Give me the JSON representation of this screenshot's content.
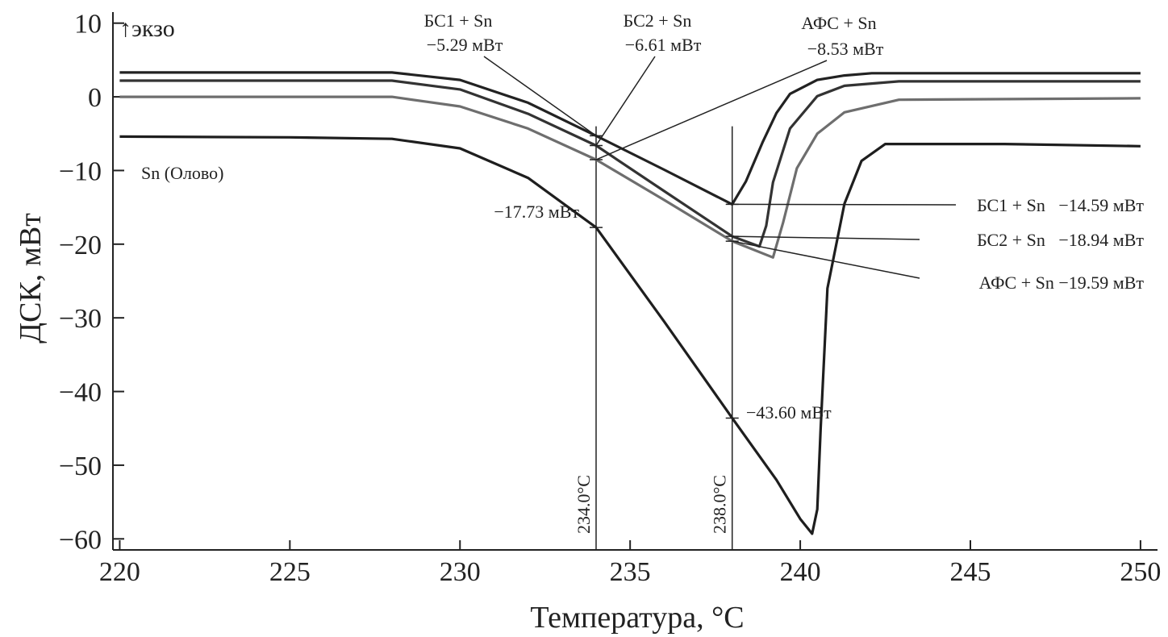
{
  "chart_data": {
    "type": "line",
    "title": "",
    "xlabel": "Температура, °C",
    "ylabel": "ДСК, мВт",
    "exo_label": "↑экзо",
    "xlim": [
      219.8,
      250.5
    ],
    "ylim": [
      -61.5,
      11.5
    ],
    "xticks": [
      220,
      225,
      230,
      235,
      240,
      245,
      250
    ],
    "yticks": [
      10,
      0,
      -10,
      -20,
      -30,
      -40,
      -50,
      -60
    ],
    "xtick_labels": [
      "220",
      "225",
      "230",
      "235",
      "240",
      "245",
      "250"
    ],
    "ytick_labels": [
      "10",
      "0",
      "−10",
      "−20",
      "−30",
      "−40",
      "−50",
      "−60"
    ],
    "grid": false,
    "series": [
      {
        "name": "БС1 + Sn",
        "color": "#222222",
        "points": [
          [
            220,
            3.3
          ],
          [
            228,
            3.3
          ],
          [
            230,
            2.3
          ],
          [
            232,
            -0.8
          ],
          [
            234,
            -5.29
          ],
          [
            236,
            -9.9
          ],
          [
            238,
            -14.59
          ],
          [
            238.4,
            -11.5
          ],
          [
            238.9,
            -6.1
          ],
          [
            239.3,
            -2.2
          ],
          [
            239.7,
            0.4
          ],
          [
            240.5,
            2.3
          ],
          [
            241.3,
            2.9
          ],
          [
            242.1,
            3.2
          ],
          [
            250,
            3.2
          ]
        ]
      },
      {
        "name": "БС2 + Sn",
        "color": "#333333",
        "points": [
          [
            220,
            2.2
          ],
          [
            228,
            2.2
          ],
          [
            230,
            1.0
          ],
          [
            232,
            -2.3
          ],
          [
            234,
            -6.61
          ],
          [
            236,
            -12.8
          ],
          [
            238,
            -18.94
          ],
          [
            238.8,
            -20.3
          ],
          [
            239.0,
            -17.5
          ],
          [
            239.2,
            -11.6
          ],
          [
            239.7,
            -4.3
          ],
          [
            240.5,
            0.1
          ],
          [
            241.3,
            1.5
          ],
          [
            242.9,
            2.1
          ],
          [
            250,
            2.1
          ]
        ]
      },
      {
        "name": "АФС + Sn",
        "color": "#6e6e6e",
        "points": [
          [
            220,
            0
          ],
          [
            228,
            0
          ],
          [
            230,
            -1.3
          ],
          [
            232,
            -4.3
          ],
          [
            234,
            -8.53
          ],
          [
            236,
            -14.0
          ],
          [
            238,
            -19.59
          ],
          [
            239.2,
            -21.8
          ],
          [
            239.5,
            -17
          ],
          [
            239.9,
            -9.7
          ],
          [
            240.5,
            -5
          ],
          [
            241.3,
            -2.1
          ],
          [
            242.9,
            -0.4
          ],
          [
            250,
            -0.2
          ]
        ]
      },
      {
        "name": "Sn (Олово)",
        "color": "#1e1e1e",
        "points": [
          [
            220,
            -5.4
          ],
          [
            225,
            -5.5
          ],
          [
            228,
            -5.7
          ],
          [
            230,
            -7
          ],
          [
            232,
            -11
          ],
          [
            234,
            -17.73
          ],
          [
            236,
            -30.5
          ],
          [
            238,
            -43.6
          ],
          [
            239.3,
            -52
          ],
          [
            240.0,
            -57.3
          ],
          [
            240.35,
            -59.3
          ],
          [
            240.5,
            -56
          ],
          [
            240.6,
            -45
          ],
          [
            240.8,
            -26
          ],
          [
            241.3,
            -14.5
          ],
          [
            241.8,
            -8.7
          ],
          [
            242.5,
            -6.4
          ],
          [
            246,
            -6.4
          ],
          [
            250,
            -6.7
          ]
        ]
      }
    ],
    "vlines": [
      {
        "x": 234,
        "label": "234.0°C"
      },
      {
        "x": 238,
        "label": "238.0°C"
      }
    ],
    "annotations": {
      "bc1_234": {
        "series": "БС1 + Sn",
        "value": "−5.29 мВт"
      },
      "bc2_234": {
        "series": "БС2 + Sn",
        "value": "−6.61 мВт"
      },
      "afs_234": {
        "series": "АФС + Sn",
        "value": "−8.53 мВт"
      },
      "sn_234": {
        "value": "−17.73 мВт"
      },
      "bc1_238": {
        "text": "БС1 + Sn   −14.59 мВт"
      },
      "bc2_238": {
        "text": "БС2 + Sn   −18.94 мВт"
      },
      "afs_238": {
        "text": "АФС + Sn −19.59 мВт"
      },
      "sn_238": {
        "value": "−43.60 мВт"
      },
      "sn_label": "Sn (Олово)"
    }
  }
}
